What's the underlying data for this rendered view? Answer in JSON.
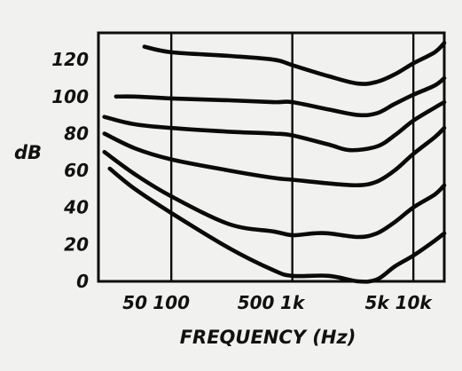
{
  "chart_data": {
    "type": "line",
    "title": "",
    "xlabel": "FREQUENCY (Hz)",
    "ylabel": "dB",
    "x_scale": "log",
    "xlim": [
      25,
      18000
    ],
    "ylim": [
      0,
      135
    ],
    "grid": "vertical lines at 100, 1k, 10k",
    "grid_x": [
      100,
      1000,
      10000
    ],
    "xticks": [
      {
        "value": 50,
        "label": "50"
      },
      {
        "value": 100,
        "label": "100"
      },
      {
        "value": 500,
        "label": "500"
      },
      {
        "value": 1000,
        "label": "1k"
      },
      {
        "value": 5000,
        "label": "5k"
      },
      {
        "value": 10000,
        "label": "10k"
      }
    ],
    "yticks": [
      {
        "value": 0,
        "label": "0"
      },
      {
        "value": 20,
        "label": "20"
      },
      {
        "value": 40,
        "label": "40"
      },
      {
        "value": 60,
        "label": "60"
      },
      {
        "value": 80,
        "label": "80"
      },
      {
        "value": 100,
        "label": "100"
      },
      {
        "value": 120,
        "label": "120"
      }
    ],
    "series": [
      {
        "x": [
          31,
          50,
          100,
          300,
          700,
          1000,
          2000,
          3500,
          5000,
          7000,
          10000,
          15000,
          18000
        ],
        "y": [
          61,
          50,
          37,
          18,
          6,
          3,
          3,
          0,
          1,
          8,
          14,
          22,
          26
        ]
      },
      {
        "x": [
          28,
          50,
          100,
          300,
          700,
          1000,
          1500,
          2000,
          3500,
          5000,
          7000,
          10000,
          15000,
          18000
        ],
        "y": [
          70,
          58,
          46,
          31,
          27,
          25,
          26,
          26,
          24,
          26,
          32,
          40,
          47,
          52
        ]
      },
      {
        "x": [
          28,
          50,
          100,
          300,
          700,
          1000,
          2000,
          3500,
          5000,
          7000,
          10000,
          15000,
          18000
        ],
        "y": [
          80,
          72,
          66,
          60,
          56,
          55,
          53,
          52,
          54,
          60,
          69,
          78,
          83
        ]
      },
      {
        "x": [
          28,
          50,
          100,
          300,
          700,
          1000,
          2000,
          3000,
          5000,
          7000,
          10000,
          15000,
          18000
        ],
        "y": [
          89,
          85,
          83,
          81,
          80,
          79,
          74,
          71,
          73,
          79,
          87,
          94,
          97
        ]
      },
      {
        "x": [
          35,
          50,
          100,
          300,
          700,
          1000,
          2000,
          3500,
          5000,
          7000,
          10000,
          15000,
          18000
        ],
        "y": [
          100,
          100,
          99,
          98,
          97,
          97,
          93,
          90,
          91,
          96,
          101,
          106,
          110
        ]
      },
      {
        "x": [
          60,
          100,
          300,
          700,
          1000,
          2000,
          3500,
          5000,
          7000,
          10000,
          15000,
          18000
        ],
        "y": [
          127,
          124,
          122,
          120,
          117,
          111,
          107,
          108,
          112,
          118,
          124,
          129
        ]
      }
    ]
  }
}
